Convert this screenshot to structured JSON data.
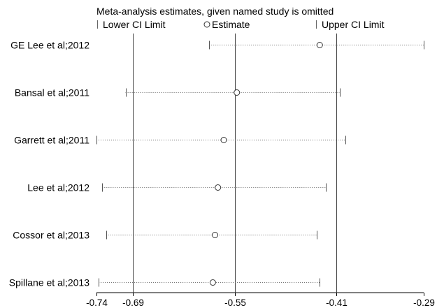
{
  "chart_data": {
    "type": "scatter",
    "title": "Meta-analysis estimates, given named study is omitted",
    "legend": {
      "placement": "top",
      "lower": "Lower CI Limit",
      "estimate": "Estimate",
      "upper": "Upper CI Limit"
    },
    "xaxis": {
      "range": [
        -0.74,
        -0.29
      ],
      "ticks": [
        -0.74,
        -0.69,
        -0.55,
        -0.41,
        -0.29
      ],
      "tick_labels": [
        "-0.74",
        "-0.69",
        "-0.55",
        "-0.41",
        "-0.29"
      ],
      "reference_lines": [
        -0.69,
        -0.55,
        -0.41
      ]
    },
    "grid": false,
    "studies": [
      {
        "name": "GE Lee et al;2012",
        "lower": -0.585,
        "estimate": -0.433,
        "upper": -0.29
      },
      {
        "name": "Bansal et al;2011",
        "lower": -0.7,
        "estimate": -0.547,
        "upper": -0.405
      },
      {
        "name": "Garrett et al;2011",
        "lower": -0.74,
        "estimate": -0.565,
        "upper": -0.398
      },
      {
        "name": "Lee et al;2012",
        "lower": -0.732,
        "estimate": -0.573,
        "upper": -0.425
      },
      {
        "name": "Cossor et al;2013",
        "lower": -0.727,
        "estimate": -0.577,
        "upper": -0.437
      },
      {
        "name": "Spillane et al;2013",
        "lower": -0.737,
        "estimate": -0.58,
        "upper": -0.433
      }
    ]
  }
}
